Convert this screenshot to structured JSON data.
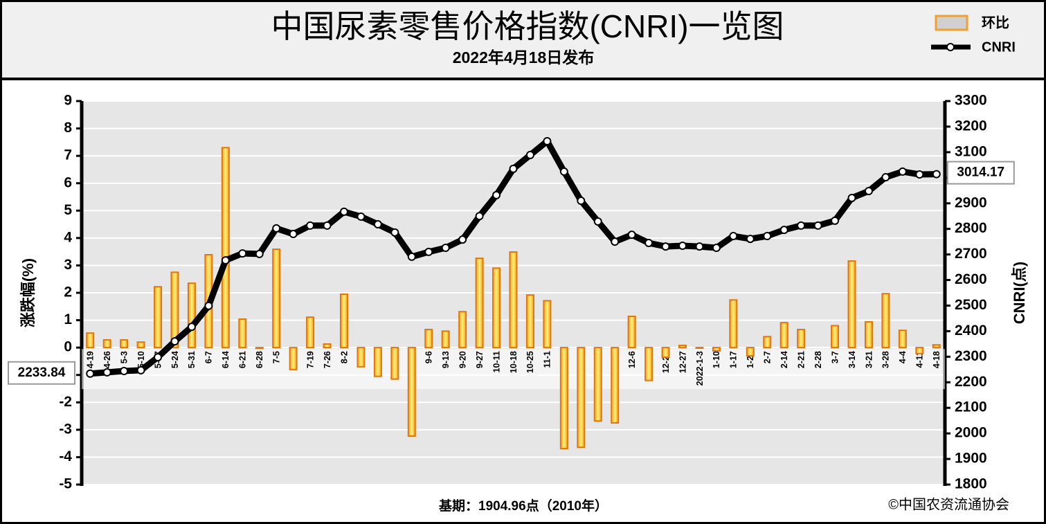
{
  "chart_data": {
    "type": "combo",
    "title": "中国尿素零售价格指数(CNRI)一览图",
    "subtitle": "2022年4月18日发布",
    "ylabel": "涨跌幅(%)",
    "y2label": "CNRI(点)",
    "footnote": "基期：1904.96点（2010年）",
    "source": "©中国农资流通协会",
    "categories": [
      "4-19",
      "4-26",
      "5-3",
      "5-10",
      "5-17",
      "5-24",
      "5-31",
      "6-7",
      "6-14",
      "6-21",
      "6-28",
      "7-5",
      "7-12",
      "7-19",
      "7-26",
      "8-2",
      "8-9",
      "8-16",
      "8-23",
      "8-30",
      "9-6",
      "9-13",
      "9-20",
      "9-27",
      "10-11",
      "10-18",
      "10-25",
      "11-1",
      "11-8",
      "11-15",
      "11-22",
      "11-29",
      "12-6",
      "12-13",
      "12-20",
      "12-27",
      "2022-1-3",
      "1-10",
      "1-17",
      "1-24",
      "2-7",
      "2-14",
      "2-21",
      "2-28",
      "3-7",
      "3-14",
      "3-21",
      "3-28",
      "4-4",
      "4-11",
      "4-18"
    ],
    "series": [
      {
        "name": "环比",
        "type": "bar",
        "color": "#f5c518",
        "values": [
          0.53,
          0.28,
          0.28,
          0.2,
          2.22,
          2.75,
          2.35,
          3.39,
          7.3,
          1.04,
          -0.03,
          3.59,
          -0.8,
          1.11,
          0.13,
          1.95,
          -0.7,
          -1.05,
          -1.15,
          -3.23,
          0.66,
          0.6,
          1.31,
          3.26,
          2.9,
          3.49,
          1.92,
          1.71,
          -3.69,
          -3.64,
          -2.68,
          -2.75,
          1.14,
          -1.2,
          -0.35,
          0.08,
          -0.02,
          -0.12,
          1.74,
          -0.3,
          0.4,
          0.91,
          0.66,
          0,
          0.8,
          3.16,
          0.94,
          1.97,
          0.63,
          -0.22,
          0.1
        ]
      },
      {
        "name": "CNRI",
        "type": "line",
        "axis": "y2",
        "color": "#000000",
        "values": [
          2233.84,
          2239,
          2244,
          2247,
          2298,
          2360,
          2417,
          2499,
          2677,
          2704,
          2702,
          2802,
          2780,
          2813,
          2813,
          2867,
          2848,
          2818,
          2786,
          2691,
          2710,
          2726,
          2758,
          2850,
          2932,
          3035,
          3089,
          3143,
          3024,
          2910,
          2829,
          2750,
          2777,
          2745,
          2731,
          2734,
          2731,
          2726,
          2772,
          2761,
          2772,
          2796,
          2813,
          2813,
          2832,
          2921,
          2948,
          3002,
          3024,
          3013,
          3014.17
        ]
      }
    ],
    "ylim": [
      -5,
      9
    ],
    "yticks": [
      -5,
      -4,
      -3,
      -2,
      -1,
      0,
      1,
      2,
      3,
      4,
      5,
      6,
      7,
      8,
      9
    ],
    "y2lim": [
      1800,
      3300
    ],
    "y2ticks": [
      1800,
      1900,
      2000,
      2100,
      2200,
      2300,
      2400,
      2500,
      2600,
      2700,
      2800,
      2900,
      3000,
      3100,
      3200,
      3300
    ],
    "grid": true,
    "legend": "top-right"
  }
}
